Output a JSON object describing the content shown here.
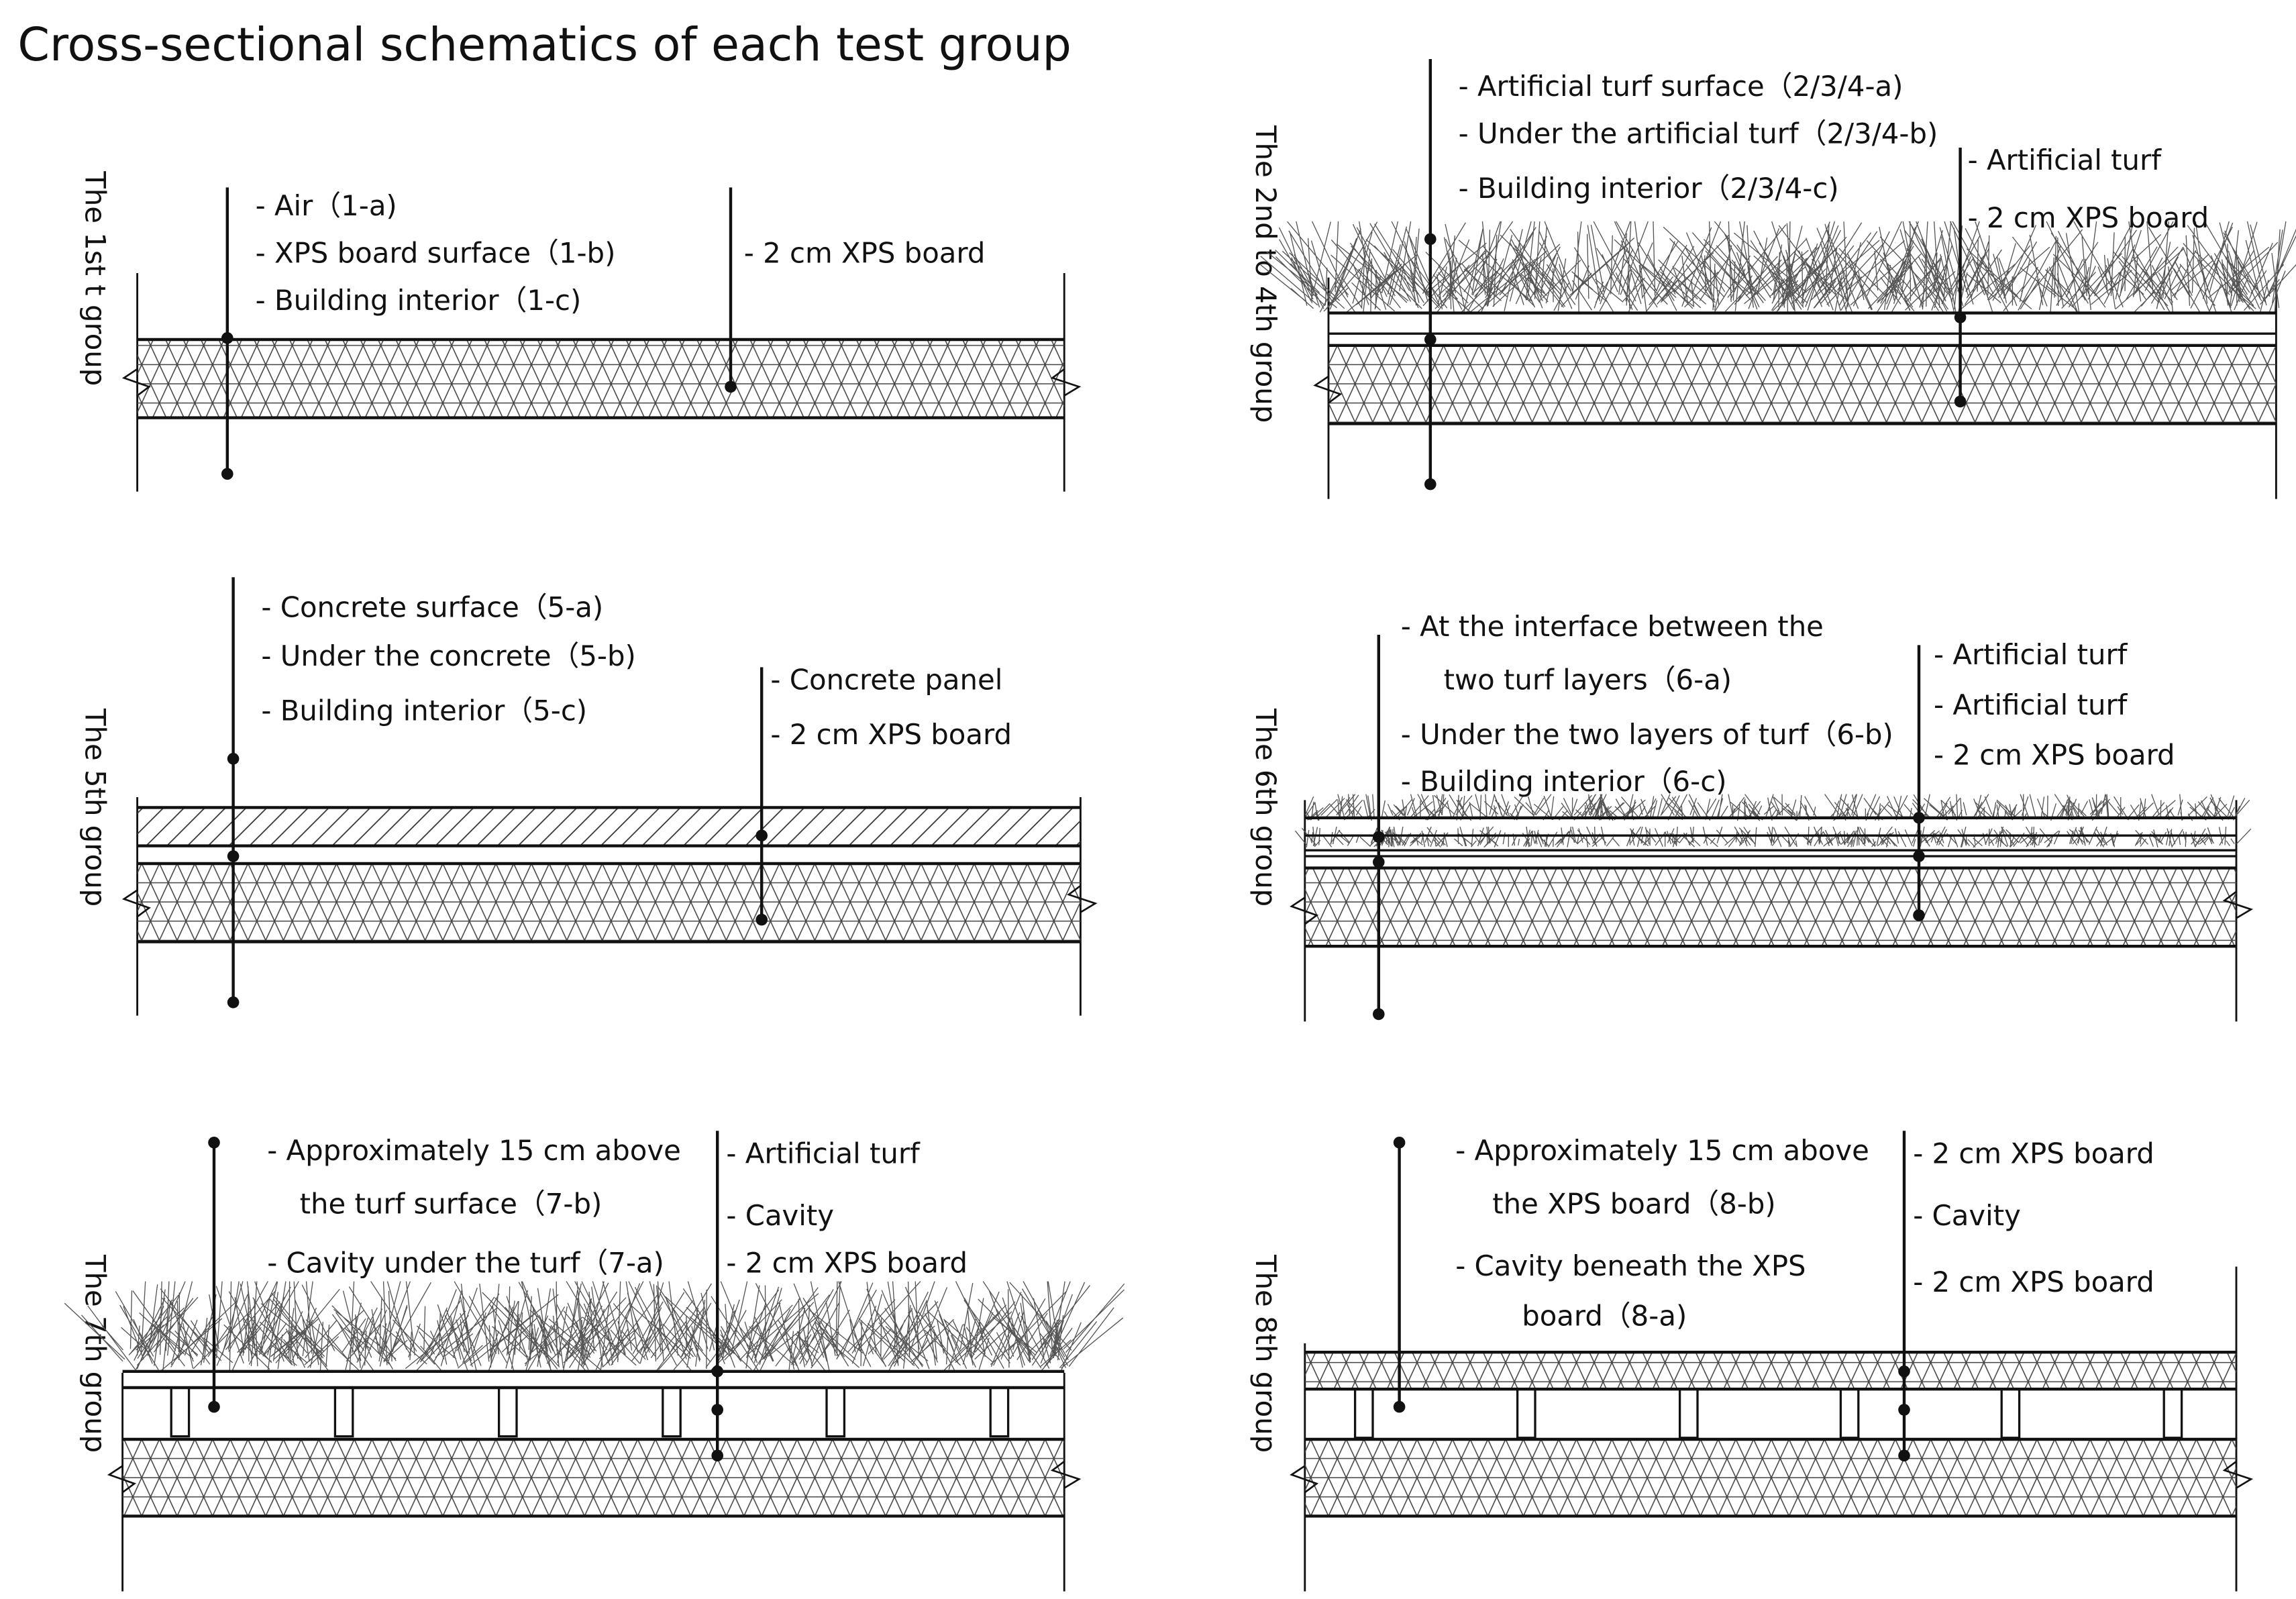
{
  "title": "Cross-sectional schematics of each test group",
  "groups": [
    {
      "name": "The 1st t group",
      "probes": [
        "- Air（1-a)",
        "- XPS board surface（1-b)",
        "- Building interior（1-c)"
      ],
      "layers": [
        "- 2 cm  XPS board"
      ]
    },
    {
      "name": "The 2nd to 4th  group",
      "probes": [
        "- Artificial turf surface（2/3/4-a)",
        "- Under the artificial turf（2/3/4-b)",
        "- Building interior（2/3/4-c)"
      ],
      "layers": [
        "- Artificial turf",
        "- 2 cm  XPS board"
      ]
    },
    {
      "name": "The 5th group",
      "probes": [
        "- Concrete surface（5-a)",
        "- Under the concrete（5-b)",
        "- Building interior（5-c)"
      ],
      "layers": [
        "- Concrete panel",
        "- 2 cm  XPS board"
      ]
    },
    {
      "name": "The 6th group",
      "probes": [
        "- At the interface between the",
        "two turf layers（6-a)",
        "- Under the two layers of turf（6-b)",
        "- Building interior（6-c)"
      ],
      "layers": [
        "- Artificial turf",
        "- Artificial turf",
        "- 2 cm  XPS board"
      ]
    },
    {
      "name": "The 7th  group",
      "probes": [
        "- Approximately 15 cm above",
        "the turf surface（7-b)",
        "- Cavity under the turf（7-a)"
      ],
      "layers": [
        "- Artificial turf",
        "- Cavity",
        "- 2 cm  XPS board"
      ]
    },
    {
      "name": "The 8th group",
      "probes": [
        "- Approximately 15 cm above",
        "the XPS board（8-b)",
        "- Cavity beneath the XPS",
        "board（8-a)"
      ],
      "layers": [
        "- 2 cm  XPS board",
        "- Cavity",
        "- 2 cm  XPS board"
      ]
    }
  ]
}
